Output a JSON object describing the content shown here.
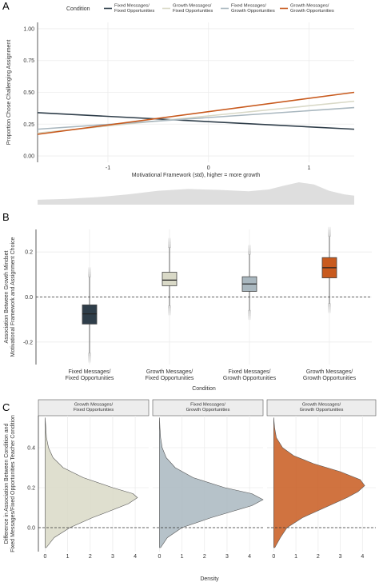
{
  "panels": {
    "a": {
      "letter": "A"
    },
    "b": {
      "letter": "B"
    },
    "c": {
      "letter": "C"
    }
  },
  "colors": {
    "fixed_fixed": "#2f3e4a",
    "growth_fixed": "#d9d9c7",
    "fixed_growth": "#a9b7bf",
    "growth_growth": "#c85a1e",
    "grid": "#ececec",
    "strip_fill": "#ededed",
    "strip_border": "#555555",
    "density_band": "#dedede"
  },
  "chart_data": [
    {
      "type": "line",
      "panel": "A",
      "legend_title": "Condition",
      "legend_position": "top",
      "xlabel": "Motivational Framework (std), higher = more growth",
      "ylabel": "Proportion Chose Challenging Assignment",
      "xlim": [
        -1.7,
        1.45
      ],
      "ylim": [
        -0.05,
        1.05
      ],
      "xticks": [
        "-1",
        "0",
        "1"
      ],
      "xtick_values": [
        -1,
        0,
        1
      ],
      "yticks": [
        "0.00",
        "0.25",
        "0.50",
        "0.75",
        "1.00"
      ],
      "ytick_values": [
        0,
        0.25,
        0.5,
        0.75,
        1
      ],
      "grid": true,
      "series": [
        {
          "name": "Fixed Messages/\nFixed Opportunities",
          "color_key": "fixed_fixed",
          "x": [
            -1.7,
            1.45
          ],
          "y": [
            0.34,
            0.21
          ]
        },
        {
          "name": "Growth Messages/\nFixed Opportunities",
          "color_key": "growth_fixed",
          "x": [
            -1.7,
            1.45
          ],
          "y": [
            0.18,
            0.43
          ]
        },
        {
          "name": "Fixed Messages/\nGrowth Opportunities",
          "color_key": "fixed_growth",
          "x": [
            -1.7,
            1.45
          ],
          "y": [
            0.21,
            0.38
          ]
        },
        {
          "name": "Growth Messages/\nGrowth Opportunities",
          "color_key": "growth_growth",
          "x": [
            -1.7,
            1.45
          ],
          "y": [
            0.17,
            0.5
          ]
        }
      ],
      "predictor_density": {
        "x": [
          -1.7,
          -1.4,
          -1.1,
          -0.8,
          -0.5,
          -0.2,
          0.1,
          0.4,
          0.6,
          0.75,
          0.9,
          1.05,
          1.2,
          1.35,
          1.45
        ],
        "density": [
          0.22,
          0.26,
          0.34,
          0.46,
          0.62,
          0.7,
          0.66,
          0.6,
          0.68,
          0.85,
          1.0,
          0.9,
          0.62,
          0.46,
          0.4
        ]
      }
    },
    {
      "type": "box",
      "panel": "B",
      "xlabel": "Condition",
      "ylabel": "Association Between Growth Mindset\nMotivational Framework and Assignment Choice",
      "ylim": [
        -0.3,
        0.3
      ],
      "yticks": [
        "-0.2",
        "0.0",
        "0.2"
      ],
      "ytick_values": [
        -0.2,
        0,
        0.2
      ],
      "reference_line": 0,
      "grid": true,
      "categories": [
        "Fixed Messages/\nFixed Opportunities",
        "Growth Messages/\nFixed Opportunities",
        "Fixed Messages/\nGrowth Opportunities",
        "Growth Messages/\nGrowth Opportunities"
      ],
      "color_keys": [
        "fixed_fixed",
        "growth_fixed",
        "fixed_growth",
        "growth_growth"
      ],
      "boxes": [
        {
          "q1": -0.12,
          "median": -0.075,
          "q3": -0.035,
          "whisker_low": -0.25,
          "whisker_high": 0.09
        },
        {
          "q1": 0.05,
          "median": 0.075,
          "q3": 0.11,
          "whisker_low": -0.04,
          "whisker_high": 0.22
        },
        {
          "q1": 0.025,
          "median": 0.058,
          "q3": 0.09,
          "whisker_low": -0.06,
          "whisker_high": 0.19
        },
        {
          "q1": 0.085,
          "median": 0.13,
          "q3": 0.175,
          "whisker_low": -0.03,
          "whisker_high": 0.27
        }
      ]
    },
    {
      "type": "area",
      "panel": "C",
      "xlabel": "Density",
      "ylabel": "Difference in Association Between Condition and\nFixed Messages/Fixed Opportunities Teacher Condition",
      "xlim": [
        -0.3,
        4.6
      ],
      "ylim": [
        -0.12,
        0.56
      ],
      "xticks": [
        "0",
        "1",
        "2",
        "3",
        "4"
      ],
      "xtick_values": [
        0,
        1,
        2,
        3,
        4
      ],
      "yticks": [
        "0.0",
        "0.2",
        "0.4"
      ],
      "ytick_values": [
        0,
        0.2,
        0.4
      ],
      "reference_line": 0,
      "grid": true,
      "facets": [
        {
          "title": "Growth Messages/\nFixed Opportunities",
          "color_key": "growth_fixed",
          "y": [
            -0.1,
            -0.05,
            0.0,
            0.05,
            0.08,
            0.12,
            0.15,
            0.17,
            0.2,
            0.25,
            0.3,
            0.35,
            0.4,
            0.45,
            0.5,
            0.55
          ],
          "density": [
            0.05,
            0.4,
            1.1,
            2.1,
            2.8,
            3.7,
            4.1,
            3.9,
            3.0,
            1.7,
            0.8,
            0.35,
            0.15,
            0.06,
            0.03,
            0.0
          ]
        },
        {
          "title": "Fixed Messages/\nGrowth Opportunities",
          "color_key": "fixed_growth",
          "y": [
            -0.1,
            -0.05,
            0.0,
            0.05,
            0.08,
            0.11,
            0.14,
            0.17,
            0.2,
            0.25,
            0.3,
            0.35,
            0.4,
            0.45,
            0.5,
            0.55
          ],
          "density": [
            0.05,
            0.35,
            1.0,
            2.3,
            3.2,
            4.1,
            4.6,
            4.1,
            2.9,
            1.5,
            0.7,
            0.3,
            0.12,
            0.05,
            0.02,
            0.0
          ]
        },
        {
          "title": "Growth Messages/\nGrowth Opportunities",
          "color_key": "growth_growth",
          "y": [
            -0.1,
            -0.05,
            0.0,
            0.05,
            0.1,
            0.15,
            0.18,
            0.21,
            0.24,
            0.28,
            0.32,
            0.36,
            0.4,
            0.45,
            0.5,
            0.55
          ],
          "density": [
            0.05,
            0.3,
            0.6,
            1.3,
            2.3,
            3.3,
            3.8,
            4.1,
            3.9,
            3.0,
            1.8,
            0.9,
            0.4,
            0.12,
            0.04,
            0.0
          ]
        }
      ]
    }
  ]
}
